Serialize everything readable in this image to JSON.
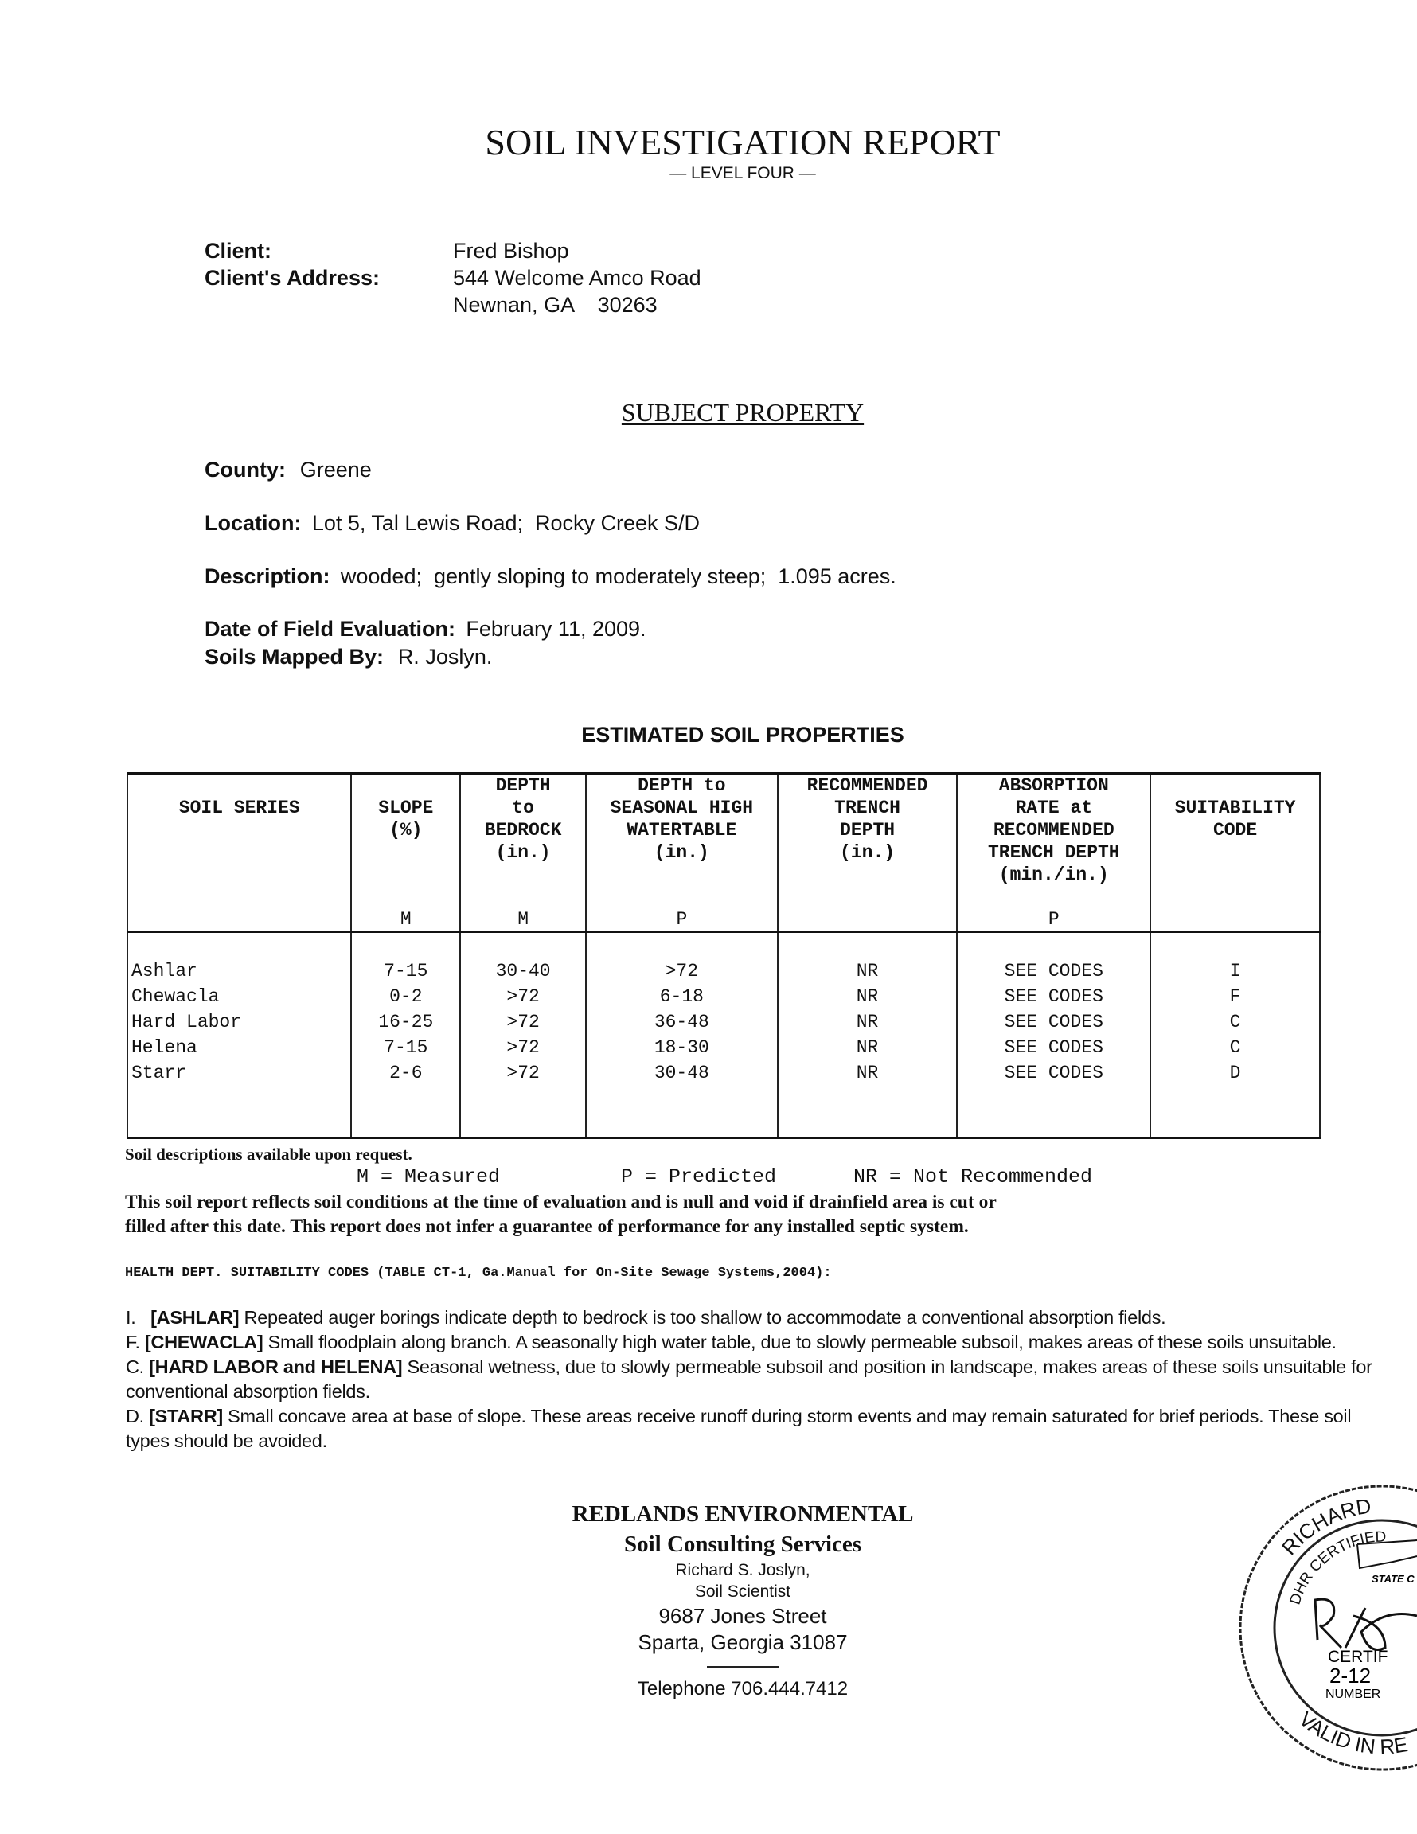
{
  "header": {
    "title": "SOIL INVESTIGATION REPORT",
    "subtitle": "— LEVEL FOUR —"
  },
  "client": {
    "label": "Client:",
    "name": "Fred Bishop",
    "address_label": "Client's Address:",
    "address_line1": "544 Welcome Amco Road",
    "address_line2": "Newnan, GA    30263"
  },
  "subject": {
    "heading": "SUBJECT PROPERTY",
    "county_label": "County:",
    "county": "Greene",
    "location_label": "Location:",
    "location": "Lot 5, Tal Lewis Road;  Rocky Creek S/D",
    "description_label": "Description:",
    "description": "wooded;  gently sloping to moderately steep;  1.095 acres.",
    "date_label": "Date of Field Evaluation:",
    "date": "February 11, 2009.",
    "mapped_label": "Soils Mapped By:",
    "mapped_by": "R. Joslyn."
  },
  "table": {
    "heading": "ESTIMATED SOIL PROPERTIES",
    "columns": [
      {
        "lines": [
          "",
          "SOIL SERIES",
          "",
          "",
          "",
          ""
        ],
        "basis": ""
      },
      {
        "lines": [
          "",
          "SLOPE",
          "(%)",
          "",
          "",
          ""
        ],
        "basis": "M"
      },
      {
        "lines": [
          "DEPTH",
          "to",
          "BEDROCK",
          "(in.)",
          "",
          ""
        ],
        "basis": "M"
      },
      {
        "lines": [
          "DEPTH to",
          "SEASONAL HIGH",
          "WATERTABLE",
          "(in.)",
          "",
          ""
        ],
        "basis": "P"
      },
      {
        "lines": [
          "RECOMMENDED",
          "TRENCH",
          "DEPTH",
          "(in.)",
          "",
          ""
        ],
        "basis": ""
      },
      {
        "lines": [
          "ABSORPTION",
          "RATE  at",
          "RECOMMENDED",
          "TRENCH DEPTH",
          "(min./in.)",
          ""
        ],
        "basis": "P"
      },
      {
        "lines": [
          "",
          "SUITABILITY",
          "CODE",
          "",
          "",
          ""
        ],
        "basis": ""
      }
    ],
    "rows": [
      [
        "Ashlar",
        "7-15",
        "30-40",
        ">72",
        "NR",
        "SEE CODES",
        "I"
      ],
      [
        "Chewacla",
        "0-2",
        ">72",
        "6-18",
        "NR",
        "SEE CODES",
        "F"
      ],
      [
        "Hard Labor",
        "16-25",
        ">72",
        "36-48",
        "NR",
        "SEE CODES",
        "C"
      ],
      [
        "Helena",
        "7-15",
        ">72",
        "18-30",
        "NR",
        "SEE CODES",
        "C"
      ],
      [
        "Starr",
        "2-6",
        ">72",
        "30-48",
        "NR",
        "SEE CODES",
        "D"
      ]
    ]
  },
  "notes": {
    "descriptions": "Soil descriptions available upon request.",
    "legend_m": "M = Measured",
    "legend_p": "P = Predicted",
    "legend_nr": "NR = Not Recommended",
    "disclaimer_1": "This soil report reflects soil conditions at the time of evaluation and is null and void if drainfield area is cut or",
    "disclaimer_2": "filled after this date.  This report does not infer a guarantee of performance for any installed septic system.",
    "codes_heading": "HEALTH DEPT. SUITABILITY CODES (TABLE CT-1, Ga.Manual for On-Site Sewage Systems,2004):"
  },
  "codes": [
    {
      "prefix": "I.   ",
      "name": "[ASHLAR]",
      "text": " Repeated auger borings indicate depth to bedrock is too shallow to accommodate a conventional absorption fields."
    },
    {
      "prefix": "F. ",
      "name": "[CHEWACLA]",
      "text": "  Small floodplain along branch.  A seasonally high water table, due to slowly permeable subsoil, makes areas of these soils unsuitable."
    },
    {
      "prefix": "C. ",
      "name": "[HARD LABOR and HELENA]",
      "text": "  Seasonal wetness, due to slowly permeable subsoil and position in landscape, makes areas of these soils unsuitable for conventional absorption fields."
    },
    {
      "prefix": "D. ",
      "name": "[STARR]",
      "text": "  Small concave area at base of slope.  These areas receive runoff during storm events and may remain saturated for brief periods.  These soil types should be avoided."
    }
  ],
  "footer": {
    "company": "REDLANDS ENVIRONMENTAL",
    "service": "Soil Consulting Services",
    "person": "Richard S. Joslyn,",
    "role": "Soil Scientist",
    "street": "9687 Jones Street",
    "city": "Sparta, Georgia 31087",
    "phone": "Telephone 706.444.7412"
  },
  "stamp": {
    "top": "RICHARD",
    "ring": "DHR CERTIFIED",
    "state": "STATE C",
    "cert": "CERTIF",
    "number": "2-12",
    "number_label": "NUMBER",
    "bottom": "VALID IN RE"
  }
}
